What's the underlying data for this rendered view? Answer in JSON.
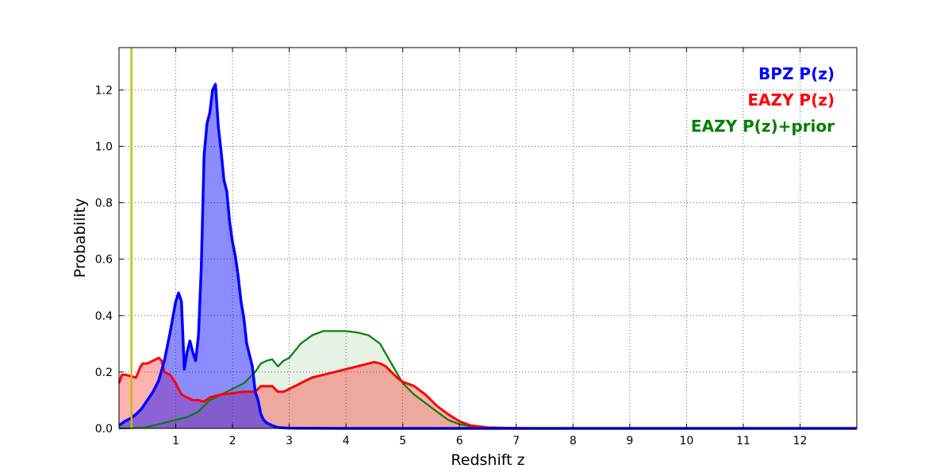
{
  "chart_data": {
    "type": "area",
    "xlabel": "Redshift z",
    "ylabel": "Probability",
    "xlim": [
      0,
      13
    ],
    "ylim": [
      0,
      1.35
    ],
    "x_ticks": [
      "1",
      "2",
      "3",
      "4",
      "5",
      "6",
      "7",
      "8",
      "9",
      "10",
      "11",
      "12"
    ],
    "y_ticks": [
      "0.0",
      "0.2",
      "0.4",
      "0.6",
      "0.8",
      "1.0",
      "1.2"
    ],
    "grid": true,
    "legend_position": "top-right",
    "vline": {
      "x": 0.22,
      "color": "#bfbf00"
    },
    "series": [
      {
        "name": "BPZ P(z)",
        "color": "#0000ff",
        "fill": "#0000ff",
        "x": [
          0.0,
          0.1,
          0.2,
          0.3,
          0.4,
          0.5,
          0.6,
          0.7,
          0.8,
          0.9,
          1.0,
          1.05,
          1.1,
          1.15,
          1.2,
          1.25,
          1.3,
          1.35,
          1.4,
          1.45,
          1.5,
          1.55,
          1.6,
          1.65,
          1.7,
          1.75,
          1.8,
          1.85,
          1.9,
          1.95,
          2.0,
          2.05,
          2.1,
          2.15,
          2.2,
          2.25,
          2.3,
          2.35,
          2.4,
          2.45,
          2.5,
          2.55,
          2.6,
          2.7,
          2.8,
          3.0,
          4.0,
          6.0,
          13.0
        ],
        "values": [
          0.01,
          0.025,
          0.035,
          0.05,
          0.07,
          0.1,
          0.13,
          0.17,
          0.24,
          0.34,
          0.45,
          0.48,
          0.45,
          0.21,
          0.27,
          0.31,
          0.27,
          0.24,
          0.33,
          0.57,
          0.97,
          1.08,
          1.12,
          1.2,
          1.22,
          1.07,
          0.98,
          0.88,
          0.84,
          0.73,
          0.66,
          0.61,
          0.54,
          0.45,
          0.39,
          0.3,
          0.26,
          0.22,
          0.13,
          0.1,
          0.05,
          0.03,
          0.02,
          0.01,
          0.003,
          0.001,
          0.0,
          0.0,
          0.0
        ]
      },
      {
        "name": "EAZY P(z)",
        "color": "#ff0000",
        "fill": "#ff0000",
        "x": [
          0.0,
          0.05,
          0.12,
          0.3,
          0.38,
          0.42,
          0.5,
          0.6,
          0.7,
          0.75,
          0.8,
          0.9,
          1.0,
          1.1,
          1.2,
          1.3,
          1.4,
          1.5,
          1.6,
          1.8,
          2.0,
          2.2,
          2.4,
          2.45,
          2.5,
          2.7,
          2.8,
          2.9,
          3.0,
          3.2,
          3.4,
          3.6,
          3.8,
          4.0,
          4.2,
          4.4,
          4.5,
          4.6,
          4.7,
          4.8,
          4.9,
          5.0,
          5.2,
          5.4,
          5.6,
          5.8,
          6.0,
          6.2,
          6.5,
          7.0,
          8.0,
          13.0
        ],
        "values": [
          0.16,
          0.19,
          0.19,
          0.18,
          0.22,
          0.23,
          0.23,
          0.24,
          0.25,
          0.24,
          0.2,
          0.19,
          0.16,
          0.12,
          0.11,
          0.1,
          0.1,
          0.095,
          0.11,
          0.12,
          0.125,
          0.13,
          0.13,
          0.14,
          0.15,
          0.15,
          0.13,
          0.13,
          0.14,
          0.16,
          0.18,
          0.19,
          0.2,
          0.21,
          0.22,
          0.23,
          0.235,
          0.23,
          0.22,
          0.2,
          0.18,
          0.165,
          0.15,
          0.12,
          0.08,
          0.05,
          0.025,
          0.01,
          0.003,
          0.0005,
          0.0,
          0.0
        ]
      },
      {
        "name": "EAZY P(z)+prior",
        "color": "#008000",
        "fill": "#008000",
        "x": [
          0.0,
          0.4,
          0.5,
          0.6,
          0.8,
          1.0,
          1.2,
          1.4,
          1.6,
          1.8,
          2.0,
          2.2,
          2.4,
          2.5,
          2.6,
          2.7,
          2.8,
          2.9,
          3.0,
          3.2,
          3.4,
          3.6,
          3.8,
          4.0,
          4.2,
          4.4,
          4.6,
          4.8,
          5.0,
          5.2,
          5.4,
          5.6,
          5.8,
          6.0,
          6.2,
          6.5,
          7.0,
          8.0,
          13.0
        ],
        "values": [
          0.0,
          0.002,
          0.005,
          0.01,
          0.02,
          0.03,
          0.04,
          0.06,
          0.1,
          0.12,
          0.14,
          0.16,
          0.2,
          0.23,
          0.24,
          0.245,
          0.22,
          0.24,
          0.25,
          0.3,
          0.33,
          0.345,
          0.345,
          0.345,
          0.34,
          0.33,
          0.3,
          0.23,
          0.16,
          0.12,
          0.09,
          0.06,
          0.03,
          0.015,
          0.007,
          0.002,
          0.0005,
          0.0,
          0.0
        ]
      }
    ]
  }
}
